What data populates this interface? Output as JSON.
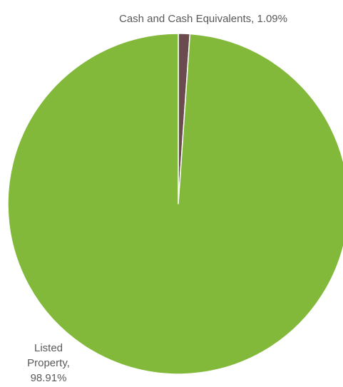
{
  "chart_data": {
    "type": "pie",
    "title": "",
    "slices": [
      {
        "name": "Cash and Cash Equivalents",
        "value": 1.09,
        "value_label": "1.09%",
        "label_lines": [
          "Cash and Cash Equivalents, 1.09%"
        ],
        "color": "#6b4c4e"
      },
      {
        "name": "Listed Property",
        "value": 98.91,
        "value_label": "98.91%",
        "label_lines": [
          "Listed",
          "Property,",
          "98.91%"
        ],
        "color": "#82b93a"
      }
    ],
    "start_angle_deg": 0,
    "direction": "clockwise",
    "slice_border_color": "#ffffff",
    "legend": "none"
  }
}
